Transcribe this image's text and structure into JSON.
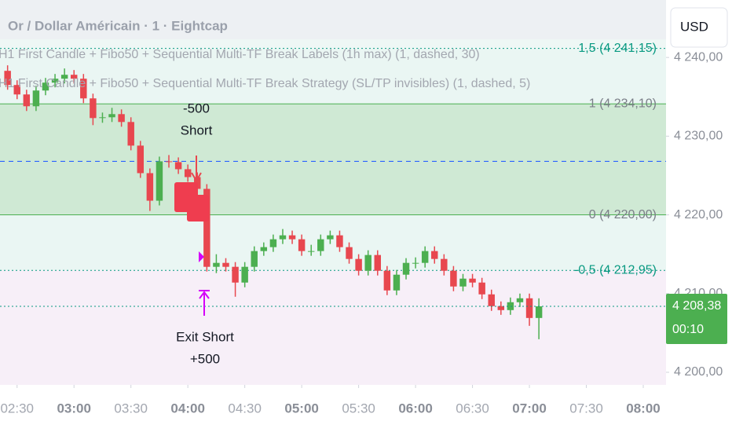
{
  "chart_data": {
    "type": "candlestick",
    "title": "Or / Dollar Américain · 1 · Eightcap",
    "indicators": [
      "H1 First Candle + Fibo50 + Sequential Multi-TF Break Labels (1h max) (1, dashed, 30)",
      "H1 First Candle + Fibo50 + Sequential Multi-TF Break Strategy (SL/TP invisibles) (1, dashed, 5)"
    ],
    "currency": "USD",
    "x": [
      "02:25",
      "02:30",
      "02:35",
      "02:40",
      "02:45",
      "02:50",
      "02:55",
      "03:00",
      "03:05",
      "03:10",
      "03:15",
      "03:20",
      "03:25",
      "03:30",
      "03:35",
      "03:40",
      "03:45",
      "03:50",
      "03:55",
      "04:00",
      "04:05",
      "04:10",
      "04:15",
      "04:20",
      "04:25",
      "04:30",
      "04:35",
      "04:40",
      "04:45",
      "04:50",
      "04:55",
      "05:00",
      "05:05",
      "05:10",
      "05:15",
      "05:20",
      "05:25",
      "05:30",
      "05:35",
      "05:40",
      "05:45",
      "05:50",
      "05:55",
      "06:00",
      "06:05",
      "06:10",
      "06:15",
      "06:20",
      "06:25",
      "06:30",
      "06:35",
      "06:40",
      "06:45",
      "06:50",
      "06:55",
      "07:00",
      "07:05"
    ],
    "open": [
      4238.3,
      4236.5,
      4235.3,
      4233.8,
      4235.8,
      4236.8,
      4237.3,
      4237.8,
      4237.3,
      4234.8,
      4232.3,
      4232.4,
      4232.8,
      4231.8,
      4228.8,
      4225.3,
      4221.8,
      4226.8,
      4226.7,
      4225.8,
      4224.8,
      4223.3,
      4213.4,
      4213.9,
      4213.4,
      4211.4,
      4213.4,
      4215.4,
      4215.9,
      4216.9,
      4217.4,
      4216.9,
      4215.4,
      4215.4,
      4216.9,
      4217.4,
      4215.9,
      4214.4,
      4212.9,
      4214.9,
      4212.9,
      4210.4,
      4212.4,
      4213.9,
      4213.9,
      4215.4,
      4214.4,
      4212.9,
      4210.9,
      4211.9,
      4211.4,
      4209.9,
      4208.4,
      4207.9,
      4208.9,
      4209.4,
      4206.9
    ],
    "high": [
      4239.0,
      4237.1,
      4235.9,
      4236.4,
      4237.4,
      4237.9,
      4238.6,
      4238.4,
      4237.9,
      4235.4,
      4233.0,
      4233.6,
      4233.4,
      4232.4,
      4229.4,
      4225.9,
      4227.4,
      4227.6,
      4227.3,
      4226.4,
      4225.4,
      4223.9,
      4215.0,
      4214.5,
      4214.0,
      4214.0,
      4216.0,
      4216.5,
      4217.5,
      4218.2,
      4218.0,
      4217.5,
      4216.2,
      4217.5,
      4218.0,
      4218.0,
      4216.5,
      4215.0,
      4215.5,
      4215.5,
      4213.5,
      4213.0,
      4214.5,
      4214.6,
      4216.0,
      4216.0,
      4215.0,
      4213.5,
      4212.5,
      4212.5,
      4212.0,
      4210.5,
      4209.0,
      4209.5,
      4210.0,
      4210.0,
      4209.4
    ],
    "low": [
      4235.9,
      4234.7,
      4233.2,
      4233.2,
      4235.2,
      4236.2,
      4236.7,
      4236.7,
      4234.2,
      4231.4,
      4231.7,
      4231.8,
      4231.2,
      4228.2,
      4224.7,
      4220.5,
      4221.2,
      4226.0,
      4225.2,
      4224.2,
      4222.7,
      4212.8,
      4212.6,
      4212.8,
      4209.6,
      4210.8,
      4212.8,
      4214.8,
      4215.3,
      4216.3,
      4216.3,
      4214.8,
      4214.8,
      4214.8,
      4216.3,
      4215.3,
      4213.8,
      4212.3,
      4212.3,
      4212.3,
      4209.8,
      4209.8,
      4211.8,
      4213.2,
      4213.3,
      4213.8,
      4212.3,
      4210.3,
      4210.3,
      4210.8,
      4209.3,
      4207.8,
      4207.3,
      4207.3,
      4208.3,
      4205.9,
      4204.2
    ],
    "close": [
      4236.5,
      4235.3,
      4233.8,
      4235.8,
      4236.8,
      4237.3,
      4237.8,
      4237.3,
      4234.8,
      4232.3,
      4232.4,
      4232.8,
      4231.8,
      4228.8,
      4225.3,
      4221.8,
      4226.8,
      4226.7,
      4225.8,
      4224.8,
      4223.3,
      4213.4,
      4213.9,
      4213.4,
      4211.4,
      4213.4,
      4215.4,
      4215.9,
      4216.9,
      4217.4,
      4216.9,
      4215.4,
      4215.4,
      4216.9,
      4217.4,
      4215.9,
      4214.4,
      4212.9,
      4214.9,
      4212.9,
      4210.4,
      4212.4,
      4213.9,
      4213.9,
      4215.4,
      4214.4,
      4212.9,
      4210.9,
      4211.9,
      4211.4,
      4209.9,
      4208.4,
      4207.9,
      4208.9,
      4209.4,
      4206.9,
      4208.38
    ],
    "up_color": "#4caf50",
    "down_color": "#e8474f",
    "xlim": [
      "02:21",
      "08:12"
    ],
    "xticks": [
      "02:30",
      "03:00",
      "03:30",
      "04:00",
      "04:30",
      "05:00",
      "05:30",
      "06:00",
      "06:30",
      "07:00",
      "07:30",
      "08:00"
    ],
    "ylim": [
      4198.4,
      4247.3
    ],
    "yticks": [
      {
        "value": 4240,
        "label": "4 240,00"
      },
      {
        "value": 4230,
        "label": "4 230,00"
      },
      {
        "value": 4220,
        "label": "4 220,00"
      },
      {
        "value": 4210,
        "label": "4 210,00"
      },
      {
        "value": 4200,
        "label": "4 200,00"
      }
    ],
    "top_fill": "#eef7f5",
    "levels": [
      {
        "value": 4241.15,
        "label": "1,5 (4 241,15)",
        "color": "#089981",
        "style": "dotted",
        "fill": "#eaf6f3"
      },
      {
        "value": 4234.1,
        "label": "1 (4 234,10)",
        "color": "#4caf50",
        "style": "solid",
        "fill": "#cfe9d4"
      },
      {
        "value": 4220.0,
        "label": "0 (4 220,00)",
        "color": "#4caf50",
        "style": "solid",
        "fill": "#eaf6f3"
      },
      {
        "value": 4212.95,
        "label": "-0,5 (4 212,95)",
        "color": "#089981",
        "style": "dotted",
        "fill": "#f7eff8"
      }
    ],
    "dashed_level": 4226.8,
    "dashed_color": "#2962ff",
    "entry_text": [
      "-500",
      "Short"
    ],
    "exit_text": [
      "Exit Short",
      "+500"
    ],
    "last_price": {
      "value": 4208.38,
      "label": "4 208,38",
      "countdown": "00:10",
      "color": "#4caf50"
    }
  }
}
